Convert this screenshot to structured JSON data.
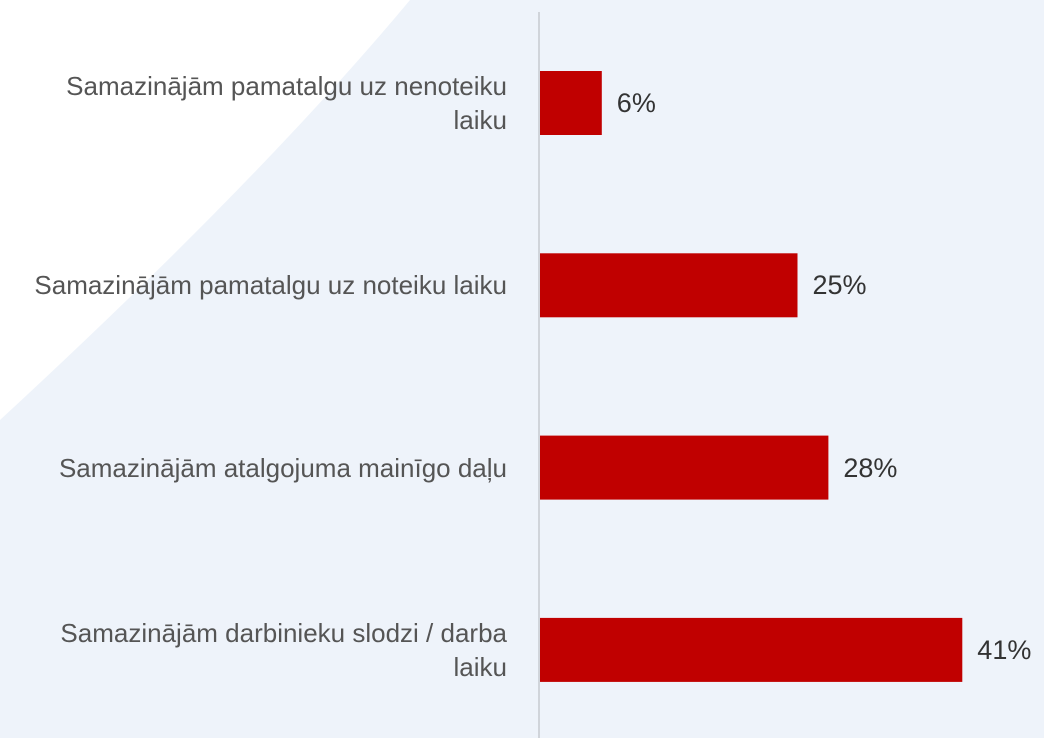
{
  "chart_data": {
    "type": "barh",
    "categories": [
      "Samazinājām pamatalgu uz nenoteiku laiku",
      "Samazinājām pamatalgu uz noteiku laiku",
      "Samazinājām atalgojuma mainīgo daļu",
      "Samazinājām darbinieku slodzi / darba laiku"
    ],
    "values": [
      6,
      25,
      28,
      41
    ],
    "value_labels": [
      "6%",
      "25%",
      "28%",
      "41%"
    ],
    "color": "#c00000"
  }
}
